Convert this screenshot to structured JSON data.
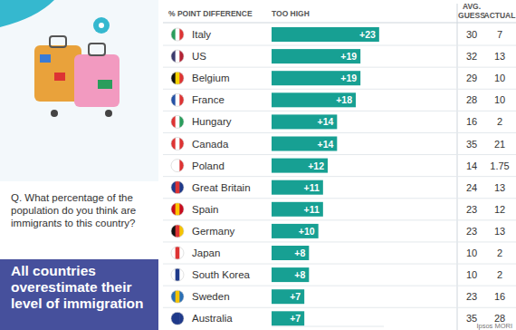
{
  "chart_data": {
    "type": "bar",
    "orientation": "horizontal",
    "data_labels": true,
    "tick_labels": false,
    "grid": false,
    "color": "#17a093",
    "category_header": "% POINT DIFFERENCE",
    "value_header": "TOO HIGH",
    "categories": [
      "Italy",
      "US",
      "Belgium",
      "France",
      "Hungary",
      "Canada",
      "Poland",
      "Great Britain",
      "Spain",
      "Germany",
      "Japan",
      "South Korea",
      "Sweden",
      "Australia"
    ],
    "values": [
      23,
      19,
      19,
      18,
      14,
      14,
      12,
      11,
      11,
      10,
      8,
      8,
      7,
      7
    ],
    "value_labels": [
      "+23",
      "+19",
      "+19",
      "+18",
      "+14",
      "+14",
      "+12",
      "+11",
      "+11",
      "+10",
      "+8",
      "+8",
      "+7",
      "+7"
    ],
    "xlim": [
      0,
      24
    ],
    "avg_guess": {
      "label": "AVG. GUESS",
      "values": [
        30,
        32,
        29,
        28,
        16,
        35,
        14,
        24,
        23,
        23,
        10,
        10,
        23,
        35
      ]
    },
    "actual": {
      "label": "ACTUAL",
      "values": [
        7,
        13,
        10,
        10,
        2,
        21,
        1.75,
        13,
        12,
        13,
        2,
        2,
        16,
        28
      ]
    }
  },
  "panel": {
    "question": "Q.  What percentage of the population do you think are immigrants to this country?",
    "headline": "All countries overestimate their level of immigration"
  },
  "source": "Ipsos MORI"
}
